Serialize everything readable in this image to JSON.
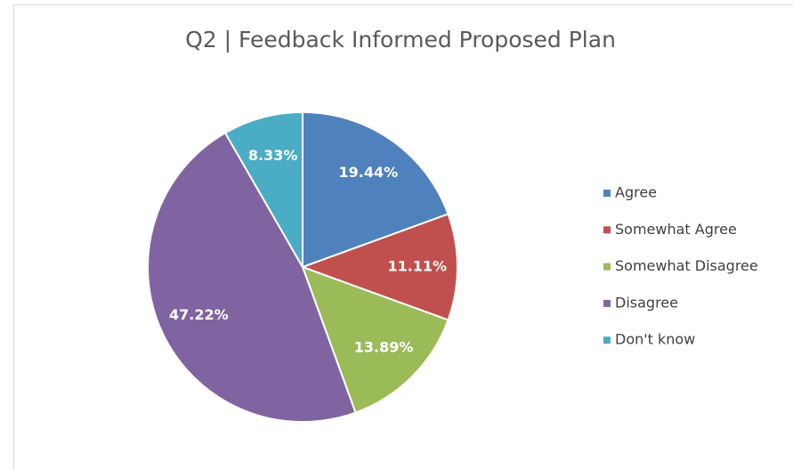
{
  "chart_data": {
    "type": "pie",
    "title": "Q2 | Feedback Informed Proposed Plan",
    "categories": [
      "Agree",
      "Somewhat Agree",
      "Somewhat Disagree",
      "Disagree",
      "Don't know"
    ],
    "values": [
      19.44,
      11.11,
      13.89,
      47.22,
      8.33
    ],
    "value_labels": [
      "19.44%",
      "11.11%",
      "13.89%",
      "47.22%",
      "8.33%"
    ],
    "colors": [
      "#4f81bd",
      "#c0504d",
      "#9bbb59",
      "#8064a2",
      "#4bacc6"
    ],
    "legend": "right"
  }
}
